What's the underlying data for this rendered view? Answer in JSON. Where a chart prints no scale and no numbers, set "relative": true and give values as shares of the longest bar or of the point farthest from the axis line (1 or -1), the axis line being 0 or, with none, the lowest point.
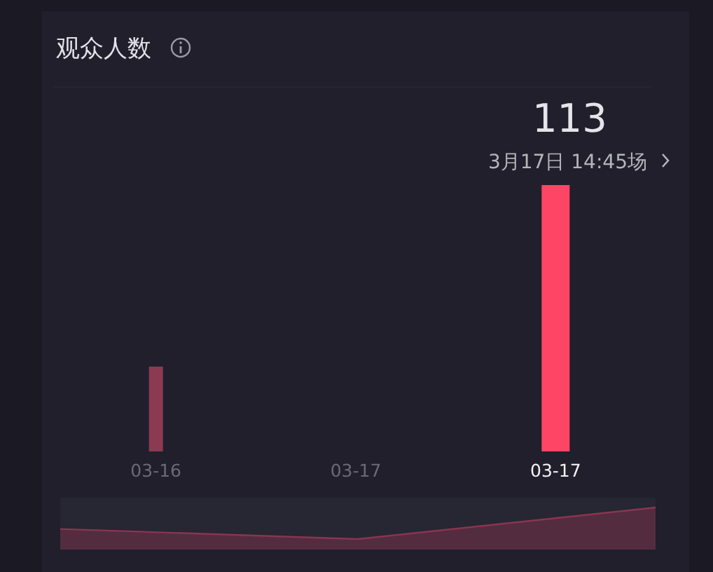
{
  "chart_data": [
    {
      "type": "bar",
      "title": "观众人数",
      "categories": [
        "03-16",
        "03-17",
        "03-17"
      ],
      "values": [
        36,
        0,
        113
      ],
      "colors": [
        "#8c3a52",
        "#8c3a52",
        "#ff4566"
      ],
      "value_labels": [
        null,
        null,
        "113"
      ],
      "annotations": [
        "3月17日 14:45场"
      ]
    },
    {
      "type": "area",
      "relative": true,
      "categories": [
        null,
        null,
        null
      ],
      "values": [
        0.49,
        0.25,
        1
      ],
      "color": "#8a3550"
    }
  ]
}
